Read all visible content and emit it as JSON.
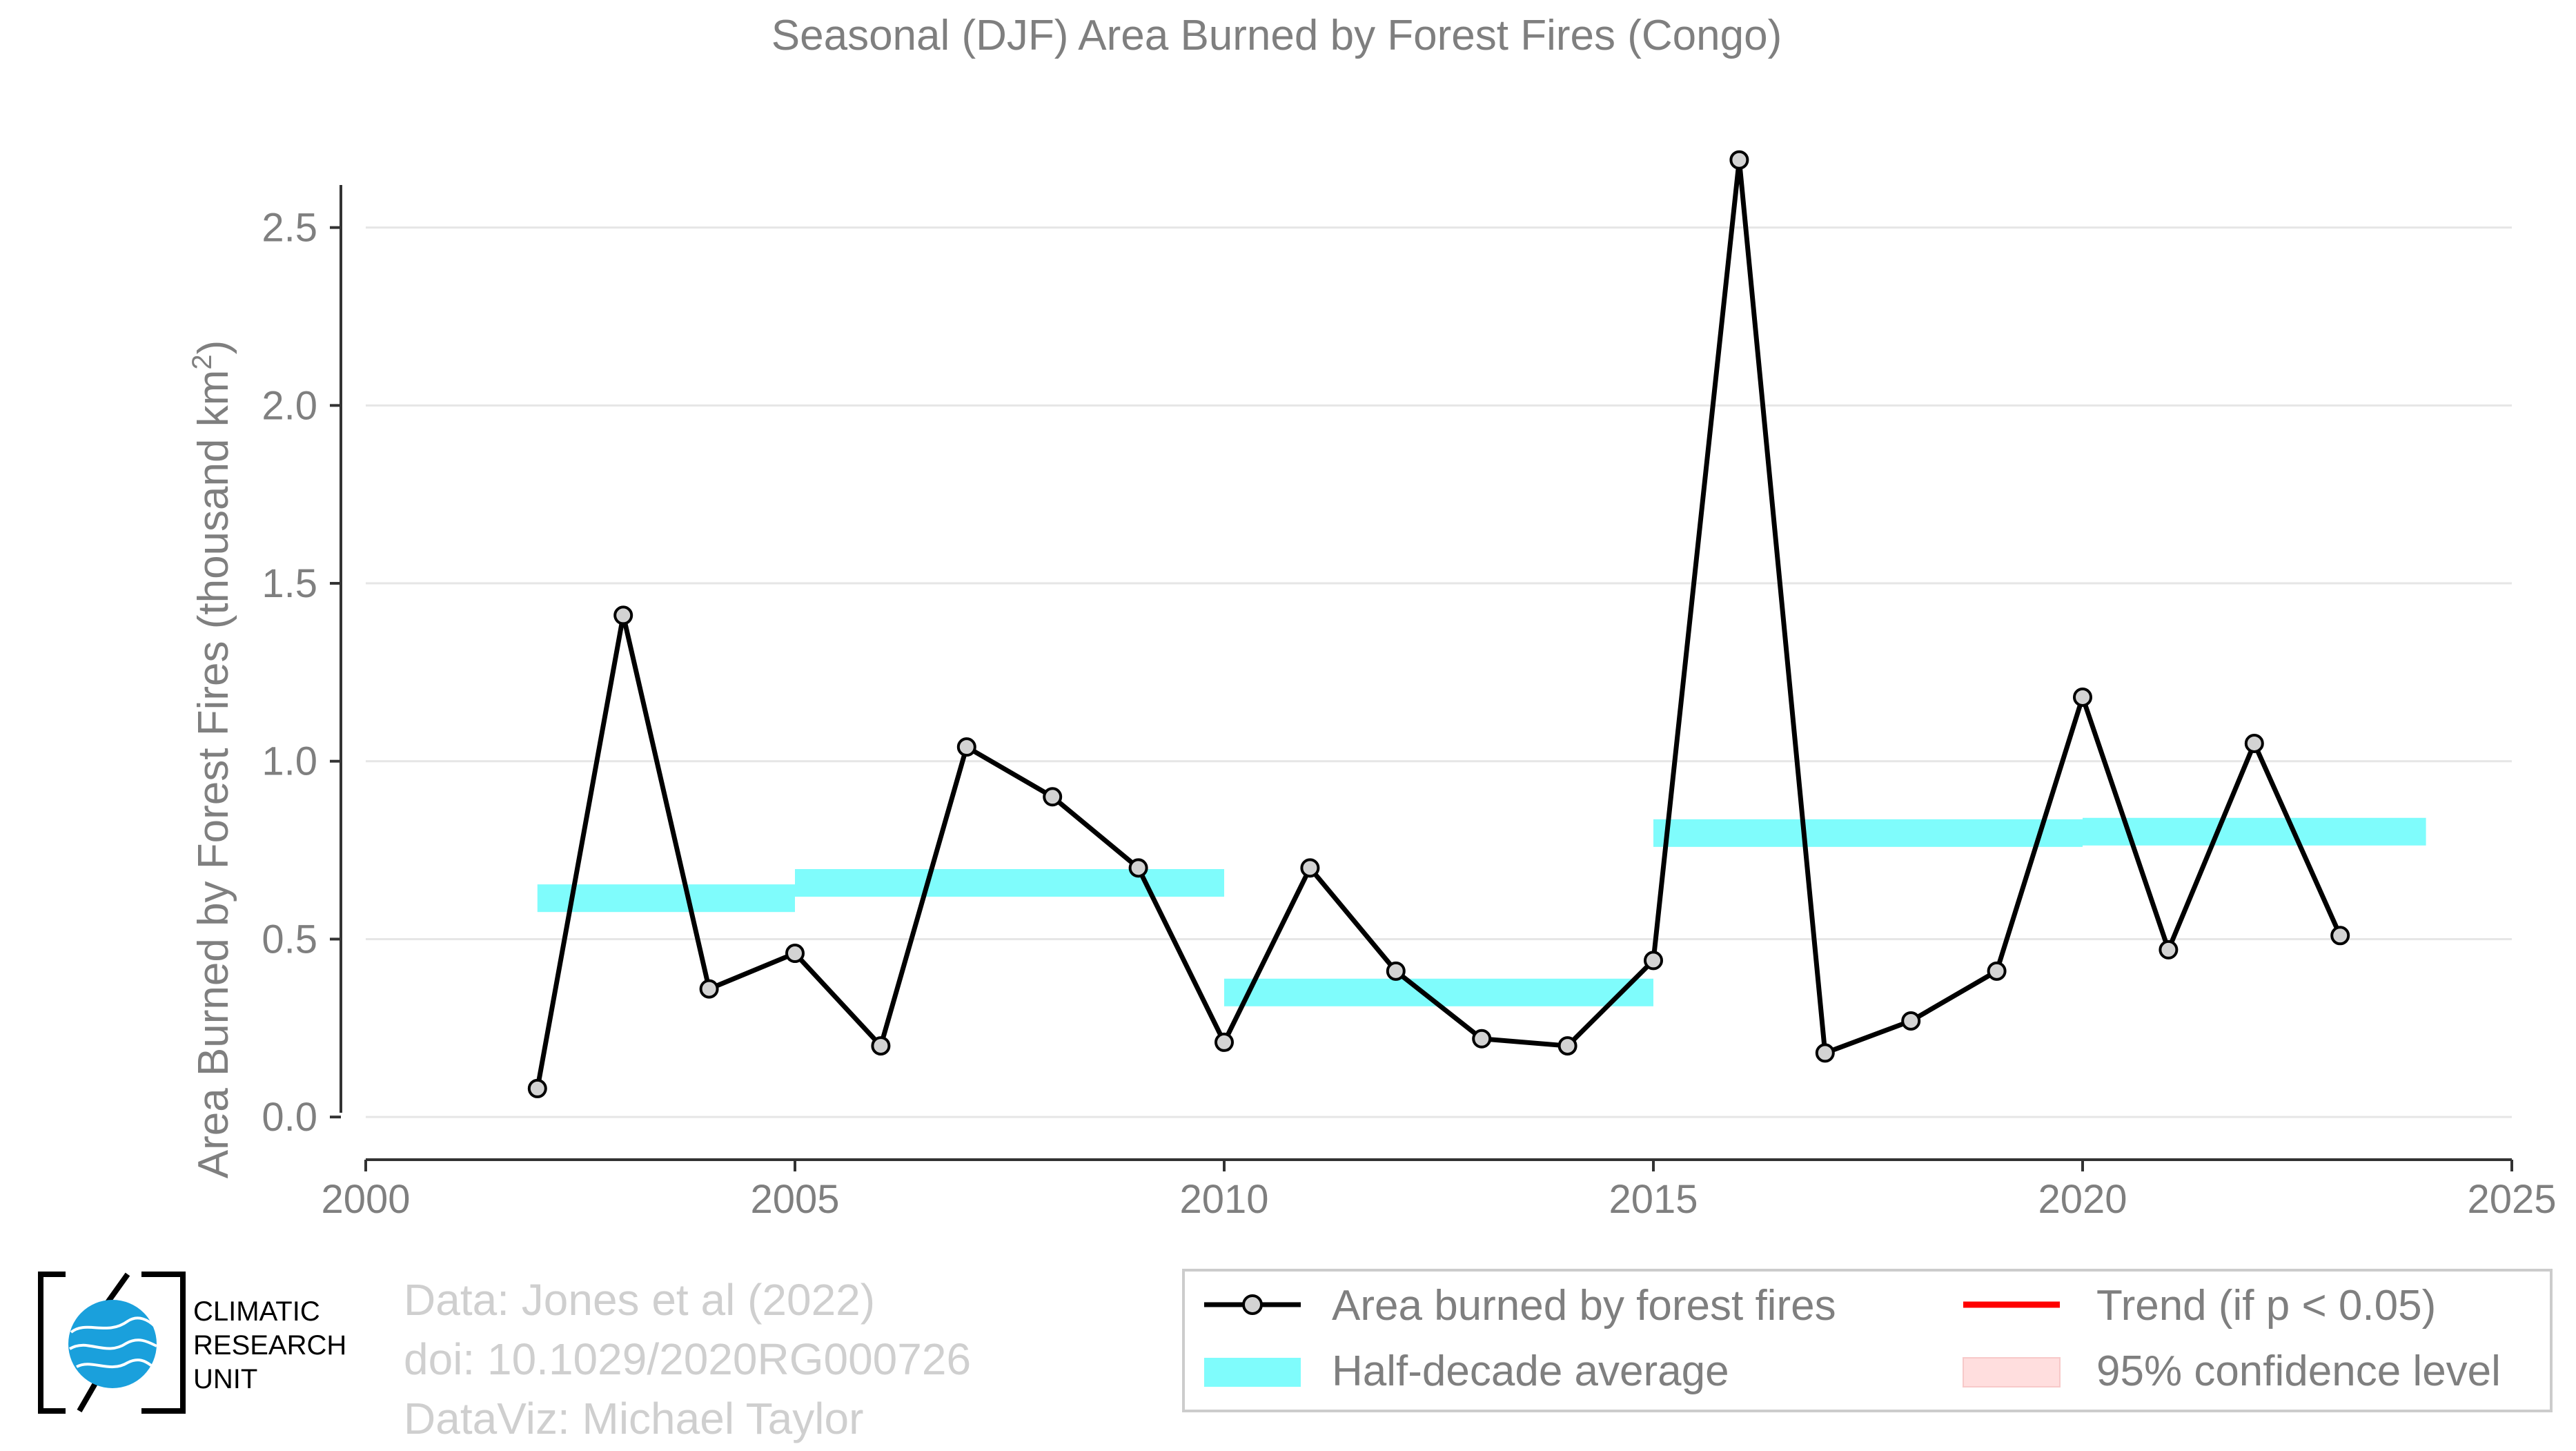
{
  "chart_data": {
    "type": "line",
    "title": "Seasonal (DJF) Area Burned by Forest Fires (Congo)",
    "ylabel_main": "Area Burned by Forest Fires (thousand km",
    "ylabel_sup": "2",
    "ylabel_close": ")",
    "xlabel": "",
    "xlim": [
      2000,
      2025
    ],
    "ylim": [
      -0.12,
      2.8
    ],
    "x_ticks": [
      2000,
      2005,
      2010,
      2015,
      2020,
      2025
    ],
    "x_tick_labels": [
      "2000",
      "2005",
      "2010",
      "2015",
      "2020",
      "2025"
    ],
    "y_ticks": [
      0.0,
      0.5,
      1.0,
      1.5,
      2.0,
      2.5
    ],
    "y_tick_labels": [
      "0.0",
      "0.5",
      "1.0",
      "1.5",
      "2.0",
      "2.5"
    ],
    "grid": "horizontal",
    "series": [
      {
        "name": "Area burned by forest fires",
        "color": "#000000",
        "marker_fill": "#d3d3d3",
        "x": [
          2002,
          2003,
          2004,
          2005,
          2006,
          2007,
          2008,
          2009,
          2010,
          2011,
          2012,
          2013,
          2014,
          2015,
          2016,
          2017,
          2018,
          2019,
          2020,
          2021,
          2022,
          2023
        ],
        "values": [
          0.08,
          1.41,
          0.36,
          0.46,
          0.2,
          1.04,
          0.9,
          0.7,
          0.21,
          0.7,
          0.41,
          0.22,
          0.2,
          0.44,
          2.69,
          0.18,
          0.27,
          0.41,
          1.18,
          0.47,
          1.05,
          0.51
        ]
      }
    ],
    "half_decade_average": {
      "name": "Half-decade average",
      "color": "#7ffcfc",
      "segments": [
        {
          "x_start": 2002,
          "x_end": 2005,
          "value": 0.615
        },
        {
          "x_start": 2005,
          "x_end": 2010,
          "value": 0.658
        },
        {
          "x_start": 2010,
          "x_end": 2015,
          "value": 0.35
        },
        {
          "x_start": 2015,
          "x_end": 2020,
          "value": 0.798
        },
        {
          "x_start": 2020,
          "x_end": 2024,
          "value": 0.802
        }
      ]
    },
    "legend": {
      "placement": "bottom-right",
      "entries": [
        {
          "label": "Area burned by forest fires",
          "kind": "line-marker",
          "color": "#000000"
        },
        {
          "label": "Trend (if p < 0.05)",
          "kind": "line",
          "color": "#ff0000"
        },
        {
          "label": "Half-decade average",
          "kind": "band",
          "color": "#7ffcfc"
        },
        {
          "label": "95% confidence level",
          "kind": "band",
          "color": "#ffdede"
        }
      ]
    }
  },
  "credits": {
    "line1": "Data: Jones et al (2022)",
    "line2": "doi: 10.1029/2020RG000726",
    "line3": "DataViz: Michael Taylor"
  },
  "logo": {
    "line1": "CLIMATIC",
    "line2": "RESEARCH",
    "line3": "UNIT"
  },
  "colors": {
    "axis_text": "#7f7f7f",
    "grid": "#e6e6e6",
    "credit_text": "#cfcfcf",
    "logo_blue": "#1aa0dc"
  }
}
